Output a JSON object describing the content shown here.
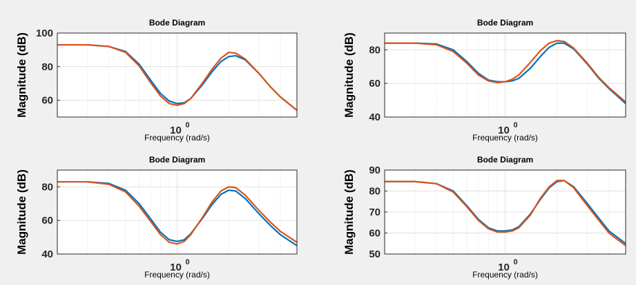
{
  "colors": {
    "series1": "#0072BD",
    "series2": "#D95319",
    "background": "#f0f0f0",
    "axes": "#ffffff",
    "grid": "#e0e0e0"
  },
  "chart_data": [
    {
      "type": "line",
      "title": "Bode Diagram",
      "xlabel": "Frequency  (rad/s)",
      "ylabel": "Magnitude (dB)",
      "xscale": "log",
      "xlim": [
        0.2,
        5
      ],
      "ylim": [
        50,
        100
      ],
      "yticks": [
        60,
        80,
        100
      ],
      "xtick_label": {
        "base": "10",
        "exp": "0"
      },
      "grid": true,
      "series": [
        {
          "x": [
            0.2,
            0.3,
            0.4,
            0.5,
            0.6,
            0.7,
            0.8,
            0.9,
            1.0,
            1.1,
            1.2,
            1.4,
            1.6,
            1.8,
            2.0,
            2.2,
            2.5,
            3.0,
            3.5,
            4.0,
            5.0
          ],
          "values": [
            93,
            93,
            92,
            89,
            81.5,
            72,
            64,
            59.5,
            58,
            58.5,
            61,
            69,
            77,
            83,
            86,
            86.5,
            84,
            76,
            68,
            62,
            54
          ]
        },
        {
          "x": [
            0.2,
            0.3,
            0.4,
            0.5,
            0.6,
            0.7,
            0.8,
            0.9,
            1.0,
            1.1,
            1.2,
            1.4,
            1.6,
            1.8,
            2.0,
            2.2,
            2.5,
            3.0,
            3.5,
            4.0,
            5.0
          ],
          "values": [
            93,
            93,
            92,
            88.5,
            80.5,
            70.5,
            62.5,
            58,
            57,
            58,
            61,
            70,
            78.5,
            85,
            88.5,
            88,
            84.5,
            76,
            68,
            62,
            54
          ]
        }
      ]
    },
    {
      "type": "line",
      "title": "Bode Diagram",
      "xlabel": "Frequency  (rad/s)",
      "ylabel": "Magnitude (dB)",
      "xscale": "log",
      "xlim": [
        0.2,
        5
      ],
      "ylim": [
        40,
        90
      ],
      "yticks": [
        40,
        60,
        80
      ],
      "xtick_label": {
        "base": "10",
        "exp": "0"
      },
      "grid": true,
      "series": [
        {
          "x": [
            0.2,
            0.3,
            0.4,
            0.5,
            0.6,
            0.7,
            0.8,
            0.9,
            1.0,
            1.1,
            1.2,
            1.4,
            1.6,
            1.8,
            2.0,
            2.2,
            2.5,
            3.0,
            3.5,
            4.0,
            5.0
          ],
          "values": [
            84,
            84,
            83.5,
            80,
            73,
            66,
            62,
            61,
            61,
            61.5,
            63,
            69,
            76,
            81.5,
            84,
            84,
            80.5,
            71.5,
            63,
            57,
            48
          ]
        },
        {
          "x": [
            0.2,
            0.3,
            0.4,
            0.5,
            0.6,
            0.7,
            0.8,
            0.9,
            1.0,
            1.1,
            1.2,
            1.4,
            1.6,
            1.8,
            2.0,
            2.2,
            2.5,
            3.0,
            3.5,
            4.0,
            5.0
          ],
          "values": [
            84,
            84,
            83,
            79,
            72,
            65,
            61.5,
            60.5,
            61,
            62.5,
            65,
            72.5,
            79.5,
            84,
            85.5,
            85,
            81,
            72,
            63.5,
            57.5,
            49
          ]
        }
      ]
    },
    {
      "type": "line",
      "title": "Bode Diagram",
      "xlabel": "Frequency  (rad/s)",
      "ylabel": "Magnitude (dB)",
      "xscale": "log",
      "xlim": [
        0.2,
        5
      ],
      "ylim": [
        40,
        90
      ],
      "yticks": [
        40,
        60,
        80
      ],
      "xtick_label": {
        "base": "10",
        "exp": "0"
      },
      "grid": true,
      "series": [
        {
          "x": [
            0.2,
            0.3,
            0.4,
            0.5,
            0.6,
            0.7,
            0.8,
            0.9,
            1.0,
            1.1,
            1.2,
            1.4,
            1.6,
            1.8,
            2.0,
            2.2,
            2.5,
            3.0,
            3.5,
            4.0,
            5.0
          ],
          "values": [
            83,
            83,
            82,
            78,
            70,
            61,
            53,
            48.5,
            47.5,
            48.5,
            52,
            61,
            69.5,
            75.5,
            78,
            77.5,
            73,
            64,
            57,
            51.5,
            45
          ]
        },
        {
          "x": [
            0.2,
            0.3,
            0.4,
            0.5,
            0.6,
            0.7,
            0.8,
            0.9,
            1.0,
            1.1,
            1.2,
            1.4,
            1.6,
            1.8,
            2.0,
            2.2,
            2.5,
            3.0,
            3.5,
            4.0,
            5.0
          ],
          "values": [
            83,
            83,
            81.5,
            77,
            68.5,
            59.5,
            51.5,
            47,
            46,
            47.5,
            51.5,
            61.5,
            71,
            77.5,
            80,
            79.5,
            75,
            66,
            59,
            53.5,
            47
          ]
        }
      ]
    },
    {
      "type": "line",
      "title": "Bode Diagram",
      "xlabel": "Frequency  (rad/s)",
      "ylabel": "Magnitude (dB)",
      "xscale": "log",
      "xlim": [
        0.2,
        5
      ],
      "ylim": [
        50,
        90
      ],
      "yticks": [
        50,
        60,
        70,
        80,
        90
      ],
      "xtick_label": {
        "base": "10",
        "exp": "0"
      },
      "grid": true,
      "series": [
        {
          "x": [
            0.2,
            0.3,
            0.4,
            0.5,
            0.6,
            0.7,
            0.8,
            0.9,
            1.0,
            1.1,
            1.2,
            1.4,
            1.6,
            1.8,
            2.0,
            2.2,
            2.5,
            3.0,
            3.5,
            4.0,
            5.0
          ],
          "values": [
            84.5,
            84.5,
            83.5,
            80,
            73,
            66.5,
            62.5,
            61,
            61,
            61.5,
            63,
            69,
            76,
            81.5,
            84.5,
            85,
            82,
            74,
            67,
            61,
            55
          ]
        },
        {
          "x": [
            0.2,
            0.3,
            0.4,
            0.5,
            0.6,
            0.7,
            0.8,
            0.9,
            1.0,
            1.1,
            1.2,
            1.4,
            1.6,
            1.8,
            2.0,
            2.2,
            2.5,
            3.0,
            3.5,
            4.0,
            5.0
          ],
          "values": [
            84.5,
            84.5,
            83.5,
            79.5,
            72.5,
            66,
            62,
            60.5,
            60.5,
            61,
            62.5,
            68.5,
            76.5,
            82,
            85,
            85,
            81.5,
            73,
            66,
            60,
            54
          ]
        }
      ]
    }
  ]
}
